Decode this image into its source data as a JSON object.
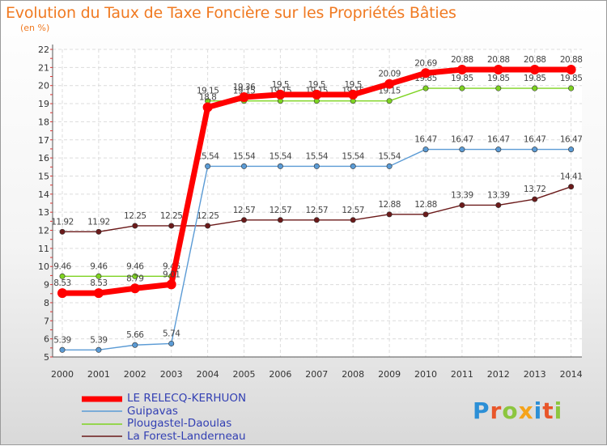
{
  "chart_data": {
    "type": "line",
    "title": "Evolution du Taux de Taxe Foncière sur les Propriétés Bâties",
    "subtitle": "(en %)",
    "x": [
      "2000",
      "2001",
      "2002",
      "2003",
      "2004",
      "2005",
      "2006",
      "2007",
      "2008",
      "2009",
      "2010",
      "2011",
      "2012",
      "2013",
      "2014"
    ],
    "ylim": [
      5,
      22
    ],
    "yticks": [
      5,
      6,
      7,
      8,
      9,
      10,
      11,
      12,
      13,
      14,
      15,
      16,
      17,
      18,
      19,
      20,
      21,
      22
    ],
    "grid": true,
    "series": [
      {
        "name": "La Forest-Landerneau",
        "color": "#6b1a1a",
        "values": [
          11.92,
          11.92,
          12.25,
          12.25,
          12.25,
          12.57,
          12.57,
          12.57,
          12.57,
          12.88,
          12.88,
          13.39,
          13.39,
          13.72,
          14.41
        ],
        "labels": [
          "11.92",
          "11.92",
          "12.25",
          "12.25",
          "12.25",
          "12.57",
          "12.57",
          "12.57",
          "12.57",
          "12.88",
          "12.88",
          "13.39",
          "13.39",
          "13.72",
          "14.41"
        ]
      },
      {
        "name": "Plougastel-Daoulas",
        "color": "#7ed321",
        "values": [
          9.46,
          9.46,
          9.46,
          9.46,
          19.15,
          19.15,
          19.15,
          19.15,
          19.15,
          19.15,
          19.85,
          19.85,
          19.85,
          19.85,
          19.85
        ],
        "labels": [
          "9.46",
          "9.46",
          "9.46",
          "9.46",
          "19.15",
          "19.15",
          "19.15",
          "19.15",
          "19.15",
          "19.15",
          "19.85",
          "19.85",
          "19.85",
          "19.85",
          "19.85"
        ]
      },
      {
        "name": "Guipavas",
        "color": "#5b9bd5",
        "values": [
          5.39,
          5.39,
          5.66,
          5.74,
          15.54,
          15.54,
          15.54,
          15.54,
          15.54,
          15.54,
          16.47,
          16.47,
          16.47,
          16.47,
          16.47
        ],
        "labels": [
          "5.39",
          "5.39",
          "5.66",
          "5.74",
          "15.54",
          "15.54",
          "15.54",
          "15.54",
          "15.54",
          "15.54",
          "16.47",
          "16.47",
          "16.47",
          "16.47",
          "16.47"
        ]
      },
      {
        "name": "LE RELECQ-KERHUON",
        "color": "#ff0000",
        "values": [
          8.53,
          8.53,
          8.79,
          9.01,
          18.8,
          19.36,
          19.5,
          19.5,
          19.5,
          20.09,
          20.69,
          20.88,
          20.88,
          20.88,
          20.88
        ],
        "labels": [
          "8.53",
          "8.53",
          "8.79",
          "9.01",
          "18.8",
          "19.36",
          "19.5",
          "19.5",
          "19.5",
          "20.09",
          "20.69",
          "20.88",
          "20.88",
          "20.88",
          "20.88"
        ]
      }
    ],
    "legend_order": [
      "LE RELECQ-KERHUON",
      "Guipavas",
      "Plougastel-Daoulas",
      "La Forest-Landerneau"
    ]
  },
  "logo": {
    "letters": [
      "P",
      "r",
      "o",
      "x",
      "i",
      "t",
      "i"
    ]
  }
}
